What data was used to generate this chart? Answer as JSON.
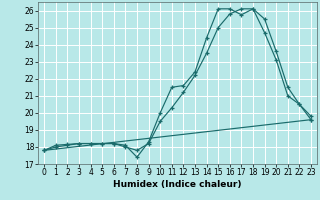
{
  "xlabel": "Humidex (Indice chaleur)",
  "bg_color": "#b8e8e8",
  "grid_color": "#ffffff",
  "line_color": "#1a6b6b",
  "xlim": [
    -0.5,
    23.5
  ],
  "ylim": [
    17.0,
    26.5
  ],
  "yticks": [
    17,
    18,
    19,
    20,
    21,
    22,
    23,
    24,
    25,
    26
  ],
  "xticks": [
    0,
    1,
    2,
    3,
    4,
    5,
    6,
    7,
    8,
    9,
    10,
    11,
    12,
    13,
    14,
    15,
    16,
    17,
    18,
    19,
    20,
    21,
    22,
    23
  ],
  "line1_x": [
    0,
    1,
    2,
    3,
    4,
    5,
    6,
    7,
    8,
    9,
    10,
    11,
    12,
    13,
    14,
    15,
    16,
    17,
    18,
    19,
    20,
    21,
    22,
    23
  ],
  "line1_y": [
    17.8,
    18.1,
    18.15,
    18.2,
    18.2,
    18.2,
    18.2,
    18.1,
    17.4,
    18.3,
    20.0,
    21.5,
    21.6,
    22.4,
    24.4,
    26.1,
    26.1,
    25.75,
    26.1,
    24.7,
    23.1,
    21.0,
    20.5,
    19.6
  ],
  "line2_x": [
    0,
    1,
    2,
    3,
    4,
    5,
    6,
    7,
    8,
    9,
    10,
    11,
    12,
    13,
    14,
    15,
    16,
    17,
    18,
    19,
    20,
    21,
    22,
    23
  ],
  "line2_y": [
    17.8,
    18.0,
    18.1,
    18.2,
    18.2,
    18.2,
    18.2,
    18.0,
    17.8,
    18.2,
    19.5,
    20.3,
    21.2,
    22.2,
    23.5,
    25.0,
    25.8,
    26.1,
    26.1,
    25.5,
    23.6,
    21.5,
    20.5,
    19.8
  ],
  "line3_x": [
    0,
    23
  ],
  "line3_y": [
    17.8,
    19.6
  ]
}
